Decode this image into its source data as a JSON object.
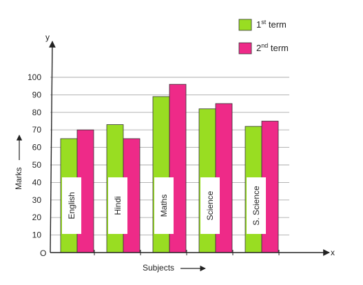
{
  "chart_data": {
    "type": "bar",
    "categories": [
      "English",
      "Hindi",
      "Maths",
      "Science",
      "S. Science"
    ],
    "series": [
      {
        "name": "1st term",
        "values": [
          65,
          73,
          89,
          82,
          72
        ],
        "color": "#99dd22"
      },
      {
        "name": "2nd term",
        "values": [
          70,
          65,
          96,
          85,
          75
        ],
        "color": "#ee2a88"
      }
    ],
    "legend": [
      {
        "base": "1",
        "sup": "st",
        "rest": " term"
      },
      {
        "base": "2",
        "sup": "nd",
        "rest": " term"
      }
    ],
    "legend_position": "top-right",
    "xlabel": "Subjects",
    "ylabel": "Marks",
    "x_axis_letter": "x",
    "y_axis_letter": "y",
    "origin_label": "O",
    "yticks": [
      10,
      20,
      30,
      40,
      50,
      60,
      70,
      80,
      90,
      100
    ],
    "ylim": [
      0,
      100
    ],
    "grid": true
  }
}
